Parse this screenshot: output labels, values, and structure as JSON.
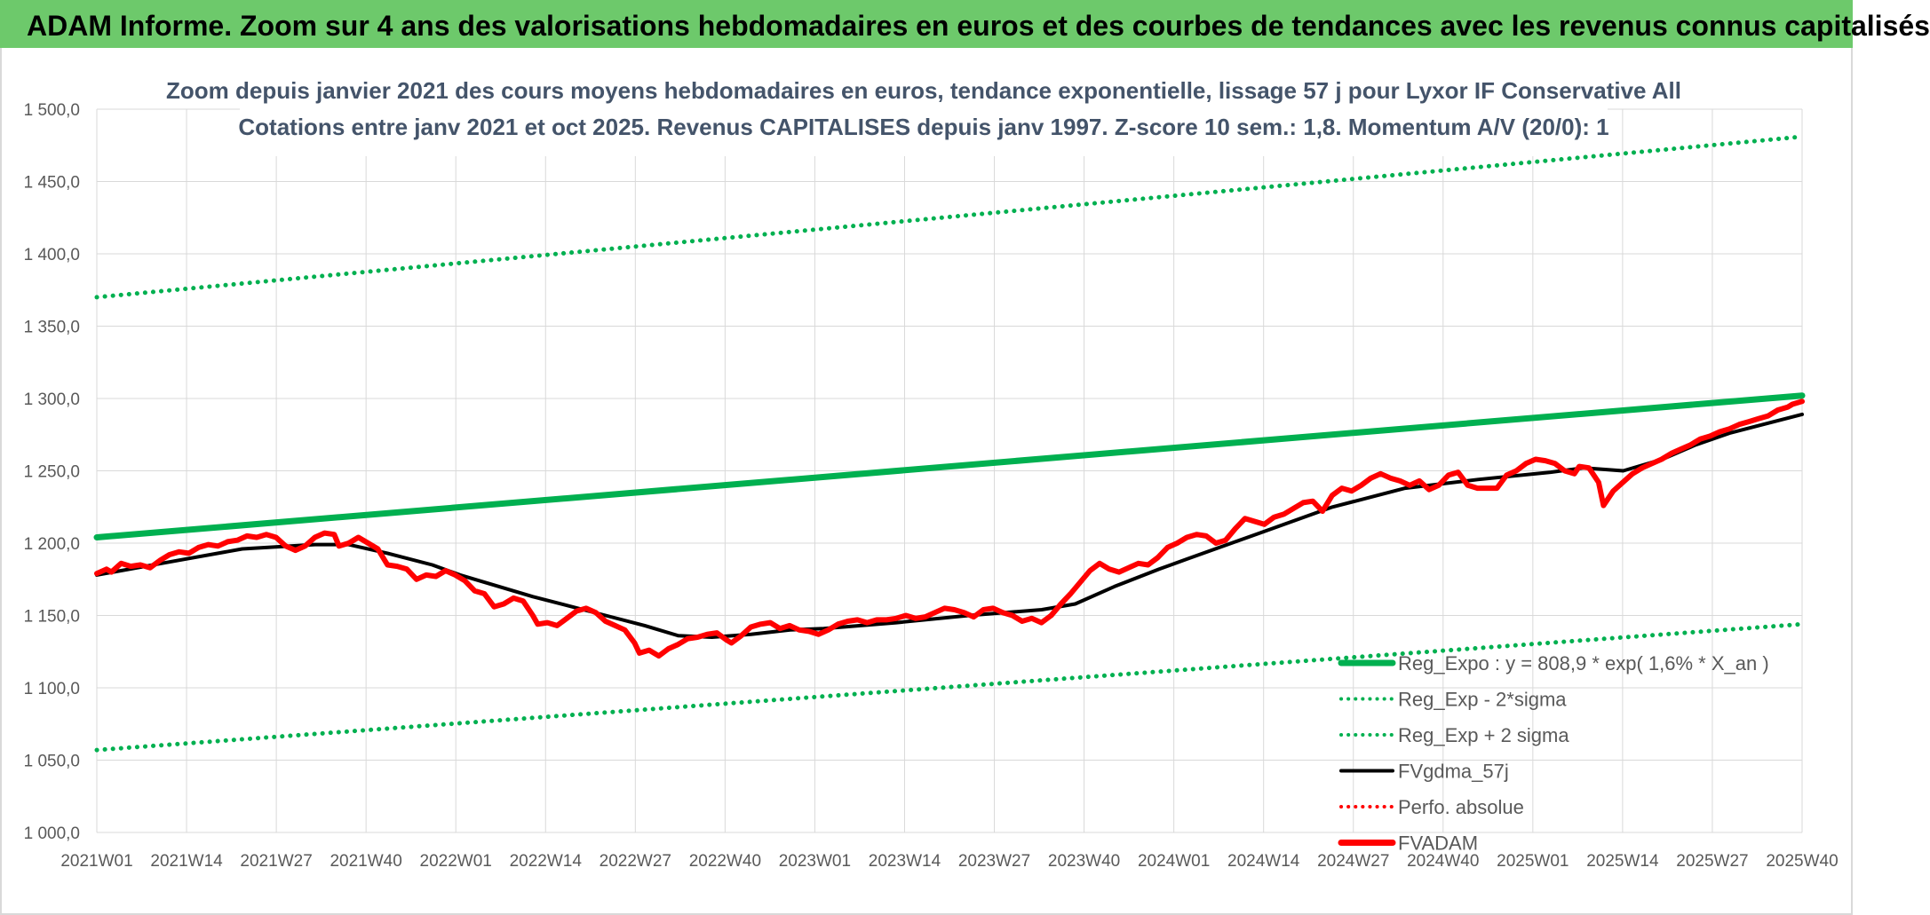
{
  "banner": {
    "title": "ADAM Informe. Zoom sur 4 ans des valorisations hebdomadaires en euros et des courbes de tendances avec les revenus connus capitalisés"
  },
  "colors": {
    "banner": "#6dc96b",
    "trend": "#00b050",
    "band": "#00b050",
    "fvgdma": "#000000",
    "fvadam": "#ff0000",
    "perfo": "#ff0000",
    "grid": "#d9d9d9"
  },
  "chart_data": {
    "type": "line",
    "title": "Zoom depuis janvier 2021 des cours moyens hebdomadaires en euros, tendance exponentielle, lissage 57 j pour Lyxor IF Conservative All",
    "subtitle": "Cotations entre janv 2021 et oct 2025. Revenus CAPITALISES depuis janv 1997. Z-score 10 sem.: 1,8. Momentum A/V (20/0): 1",
    "ylim": [
      1000,
      1500
    ],
    "y_ticks": [
      "1 000,0",
      "1 050,0",
      "1 100,0",
      "1 150,0",
      "1 200,0",
      "1 250,0",
      "1 300,0",
      "1 350,0",
      "1 400,0",
      "1 450,0",
      "1 500,0"
    ],
    "x_ticks": [
      "2021W01",
      "2021W14",
      "2021W27",
      "2021W40",
      "2022W01",
      "2022W14",
      "2022W27",
      "2022W40",
      "2023W01",
      "2023W14",
      "2023W27",
      "2023W40",
      "2024W01",
      "2024W14",
      "2024W27",
      "2024W40",
      "2025W01",
      "2025W14",
      "2025W27",
      "2025W40"
    ],
    "legend": [
      {
        "label": "Reg_Expo : y = 808,9 * exp( 1,6% *  X_an )",
        "style": "solid-thick",
        "color": "#00b050"
      },
      {
        "label": "Reg_Exp - 2*sigma",
        "style": "dotted",
        "color": "#00b050"
      },
      {
        "label": "Reg_Exp + 2 sigma",
        "style": "dotted",
        "color": "#00b050"
      },
      {
        "label": "FVgdma_57j",
        "style": "solid",
        "color": "#000000"
      },
      {
        "label": "Perfo. absolue",
        "style": "dotted",
        "color": "#ff0000"
      },
      {
        "label": "FVADAM",
        "style": "solid-thick",
        "color": "#ff0000"
      }
    ],
    "series": [
      {
        "name": "Reg_Expo",
        "points": [
          [
            0,
            1204
          ],
          [
            247,
            1302
          ]
        ]
      },
      {
        "name": "Reg_Exp - 2*sigma",
        "points": [
          [
            0,
            1057
          ],
          [
            247,
            1144
          ]
        ]
      },
      {
        "name": "Reg_Exp + 2 sigma",
        "points": [
          [
            0,
            1370
          ],
          [
            247,
            1481
          ]
        ]
      },
      {
        "name": "FVgdma_57j",
        "points": [
          [
            0,
            1178
          ],
          [
            13,
            1187
          ],
          [
            26,
            1196
          ],
          [
            39,
            1199
          ],
          [
            45,
            1199
          ],
          [
            52,
            1193
          ],
          [
            60,
            1185
          ],
          [
            65,
            1178
          ],
          [
            78,
            1163
          ],
          [
            91,
            1150
          ],
          [
            98,
            1143
          ],
          [
            104,
            1136
          ],
          [
            110,
            1135
          ],
          [
            117,
            1137
          ],
          [
            124,
            1140
          ],
          [
            130,
            1141
          ],
          [
            143,
            1145
          ],
          [
            156,
            1150
          ],
          [
            169,
            1154
          ],
          [
            175,
            1158
          ],
          [
            182,
            1170
          ],
          [
            190,
            1182
          ],
          [
            195,
            1189
          ],
          [
            208,
            1207
          ],
          [
            221,
            1225
          ],
          [
            234,
            1238
          ],
          [
            247,
            1244
          ],
          [
            260,
            1249
          ],
          [
            266,
            1252
          ],
          [
            273,
            1250
          ],
          [
            280,
            1258
          ],
          [
            286,
            1268
          ],
          [
            292,
            1276
          ],
          [
            299,
            1283
          ],
          [
            305,
            1289
          ]
        ]
      },
      {
        "name": "FVADAM",
        "points": [
          [
            0,
            1179
          ],
          [
            2,
            1182
          ],
          [
            3,
            1180
          ],
          [
            5,
            1186
          ],
          [
            7,
            1184
          ],
          [
            9,
            1185
          ],
          [
            11,
            1183
          ],
          [
            13,
            1188
          ],
          [
            15,
            1192
          ],
          [
            17,
            1194
          ],
          [
            19,
            1193
          ],
          [
            21,
            1197
          ],
          [
            23,
            1199
          ],
          [
            25,
            1198
          ],
          [
            27,
            1201
          ],
          [
            29,
            1202
          ],
          [
            31,
            1205
          ],
          [
            33,
            1204
          ],
          [
            35,
            1206
          ],
          [
            37,
            1204
          ],
          [
            39,
            1198
          ],
          [
            41,
            1195
          ],
          [
            43,
            1198
          ],
          [
            45,
            1204
          ],
          [
            47,
            1207
          ],
          [
            49,
            1206
          ],
          [
            50,
            1198
          ],
          [
            52,
            1200
          ],
          [
            54,
            1204
          ],
          [
            56,
            1200
          ],
          [
            58,
            1196
          ],
          [
            60,
            1185
          ],
          [
            62,
            1184
          ],
          [
            64,
            1182
          ],
          [
            66,
            1175
          ],
          [
            68,
            1178
          ],
          [
            70,
            1177
          ],
          [
            72,
            1181
          ],
          [
            74,
            1178
          ],
          [
            76,
            1174
          ],
          [
            78,
            1167
          ],
          [
            80,
            1165
          ],
          [
            82,
            1156
          ],
          [
            84,
            1158
          ],
          [
            86,
            1162
          ],
          [
            88,
            1160
          ],
          [
            90,
            1150
          ],
          [
            91,
            1144
          ],
          [
            93,
            1145
          ],
          [
            95,
            1143
          ],
          [
            97,
            1148
          ],
          [
            99,
            1153
          ],
          [
            101,
            1155
          ],
          [
            103,
            1152
          ],
          [
            105,
            1146
          ],
          [
            107,
            1143
          ],
          [
            109,
            1140
          ],
          [
            111,
            1131
          ],
          [
            112,
            1124
          ],
          [
            114,
            1126
          ],
          [
            116,
            1122
          ],
          [
            118,
            1127
          ],
          [
            120,
            1130
          ],
          [
            122,
            1134
          ],
          [
            124,
            1135
          ],
          [
            126,
            1137
          ],
          [
            128,
            1138
          ],
          [
            130,
            1133
          ],
          [
            131,
            1131
          ],
          [
            133,
            1136
          ],
          [
            135,
            1142
          ],
          [
            137,
            1144
          ],
          [
            139,
            1145
          ],
          [
            141,
            1141
          ],
          [
            143,
            1143
          ],
          [
            145,
            1140
          ],
          [
            147,
            1139
          ],
          [
            149,
            1137
          ],
          [
            151,
            1140
          ],
          [
            153,
            1144
          ],
          [
            155,
            1146
          ],
          [
            157,
            1147
          ],
          [
            159,
            1145
          ],
          [
            161,
            1147
          ],
          [
            163,
            1147
          ],
          [
            165,
            1148
          ],
          [
            167,
            1150
          ],
          [
            169,
            1148
          ],
          [
            171,
            1149
          ],
          [
            173,
            1152
          ],
          [
            175,
            1155
          ],
          [
            177,
            1154
          ],
          [
            179,
            1152
          ],
          [
            181,
            1149
          ],
          [
            183,
            1154
          ],
          [
            185,
            1155
          ],
          [
            187,
            1152
          ],
          [
            189,
            1150
          ],
          [
            191,
            1146
          ],
          [
            193,
            1148
          ],
          [
            195,
            1145
          ],
          [
            197,
            1150
          ],
          [
            199,
            1158
          ],
          [
            201,
            1165
          ],
          [
            203,
            1173
          ],
          [
            205,
            1181
          ],
          [
            207,
            1186
          ],
          [
            209,
            1182
          ],
          [
            211,
            1180
          ],
          [
            213,
            1183
          ],
          [
            215,
            1186
          ],
          [
            217,
            1185
          ],
          [
            219,
            1190
          ],
          [
            221,
            1197
          ],
          [
            223,
            1200
          ],
          [
            225,
            1204
          ],
          [
            227,
            1206
          ],
          [
            229,
            1205
          ],
          [
            231,
            1200
          ],
          [
            233,
            1202
          ],
          [
            235,
            1210
          ],
          [
            237,
            1217
          ],
          [
            239,
            1215
          ],
          [
            241,
            1213
          ],
          [
            243,
            1218
          ],
          [
            245,
            1220
          ],
          [
            247,
            1224
          ],
          [
            249,
            1228
          ],
          [
            251,
            1229
          ],
          [
            253,
            1222
          ],
          [
            255,
            1233
          ],
          [
            257,
            1238
          ],
          [
            259,
            1236
          ],
          [
            261,
            1240
          ],
          [
            263,
            1245
          ],
          [
            265,
            1248
          ],
          [
            267,
            1245
          ],
          [
            269,
            1243
          ],
          [
            271,
            1240
          ],
          [
            273,
            1243
          ],
          [
            275,
            1237
          ],
          [
            277,
            1240
          ],
          [
            279,
            1247
          ],
          [
            281,
            1249
          ],
          [
            283,
            1240
          ],
          [
            285,
            1238
          ],
          [
            287,
            1238
          ],
          [
            289,
            1238
          ],
          [
            291,
            1247
          ],
          [
            293,
            1250
          ],
          [
            295,
            1255
          ],
          [
            297,
            1258
          ],
          [
            299,
            1257
          ],
          [
            301,
            1255
          ],
          [
            303,
            1250
          ],
          [
            305,
            1248
          ],
          [
            306,
            1253
          ],
          [
            308,
            1252
          ],
          [
            310,
            1242
          ],
          [
            311,
            1226
          ],
          [
            313,
            1236
          ],
          [
            315,
            1242
          ],
          [
            317,
            1248
          ],
          [
            319,
            1252
          ],
          [
            321,
            1255
          ],
          [
            323,
            1258
          ],
          [
            325,
            1262
          ],
          [
            327,
            1265
          ],
          [
            329,
            1268
          ],
          [
            331,
            1272
          ],
          [
            333,
            1274
          ],
          [
            335,
            1277
          ],
          [
            337,
            1279
          ],
          [
            339,
            1282
          ],
          [
            341,
            1284
          ],
          [
            343,
            1286
          ],
          [
            345,
            1288
          ],
          [
            347,
            1292
          ],
          [
            349,
            1294
          ],
          [
            350,
            1296
          ],
          [
            352,
            1298
          ]
        ]
      }
    ]
  }
}
